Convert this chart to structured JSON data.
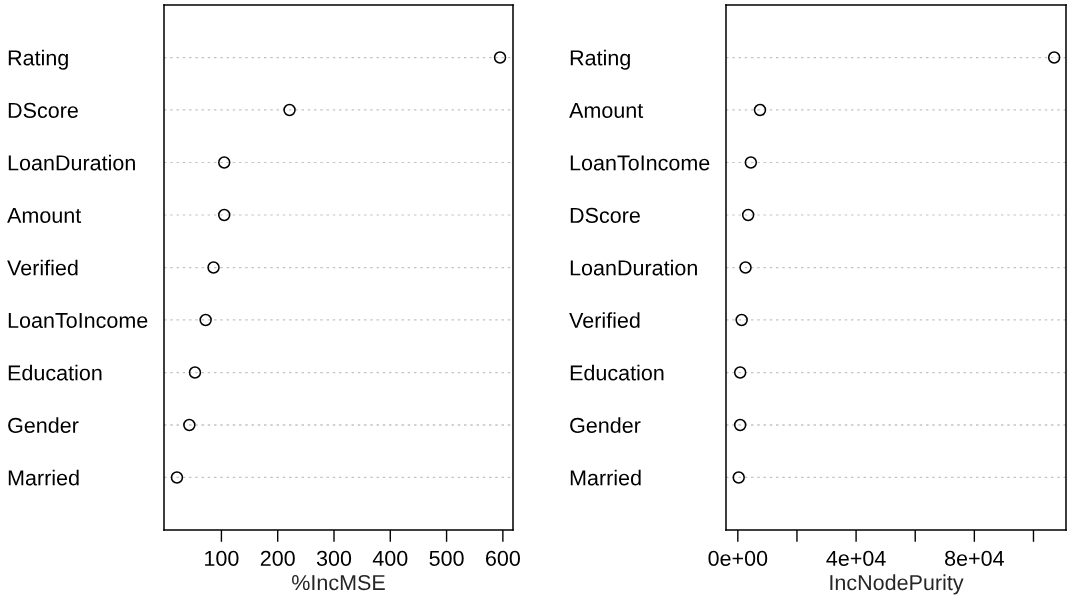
{
  "chart_data": [
    {
      "type": "scatter",
      "orientation": "horizontal",
      "categories": [
        "Rating",
        "DScore",
        "LoanDuration",
        "Amount",
        "Verified",
        "LoanToIncome",
        "Education",
        "Gender",
        "Married"
      ],
      "values": [
        595,
        221,
        105,
        105,
        86,
        72,
        53,
        43,
        21
      ],
      "color": "#000000",
      "marker": "circle",
      "grid": "y",
      "xlabel": "%IncMSE",
      "xlim": [
        -2,
        618
      ],
      "xticks": [
        100,
        200,
        300,
        400,
        500,
        600
      ]
    },
    {
      "type": "scatter",
      "orientation": "horizontal",
      "categories": [
        "Rating",
        "Amount",
        "LoanToIncome",
        "DScore",
        "LoanDuration",
        "Verified",
        "Education",
        "Gender",
        "Married"
      ],
      "values": [
        107000,
        7500,
        4400,
        3500,
        2600,
        1300,
        800,
        800,
        300
      ],
      "color": "#000000",
      "marker": "circle",
      "grid": "y",
      "xlabel": "IncNodePurity",
      "xlim": [
        -4000,
        111000
      ],
      "xticks": [
        {
          "value": 0,
          "label": "0e+00"
        },
        {
          "value": 20000,
          "label": null
        },
        {
          "value": 40000,
          "label": "4e+04"
        },
        {
          "value": 60000,
          "label": null
        },
        {
          "value": 80000,
          "label": "8e+04"
        },
        {
          "value": 100000,
          "label": null
        }
      ]
    }
  ]
}
